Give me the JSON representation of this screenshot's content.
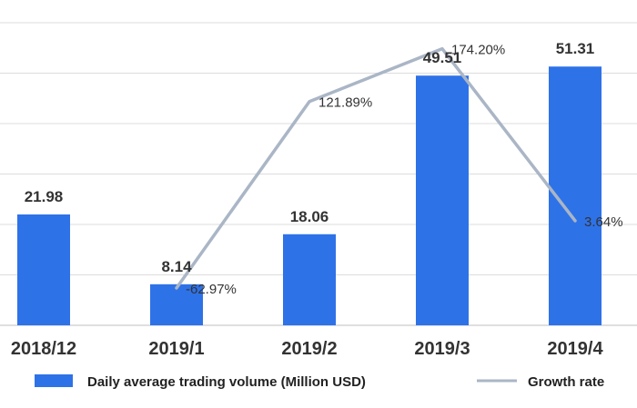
{
  "chart_data": {
    "type": "bar",
    "categories": [
      "2018/12",
      "2019/1",
      "2019/2",
      "2019/3",
      "2019/4"
    ],
    "series": [
      {
        "name": "Daily average trading volume  (Million USD)",
        "type": "bar",
        "values": [
          21.98,
          8.14,
          18.06,
          49.51,
          51.31
        ],
        "labels": [
          "21.98",
          "8.14",
          "18.06",
          "49.51",
          "51.31"
        ],
        "color": "#2e72e8"
      },
      {
        "name": "Growth rate",
        "type": "line",
        "x": [
          "2019/1",
          "2019/2",
          "2019/3",
          "2019/4"
        ],
        "values": [
          -62.97,
          121.89,
          174.2,
          3.64
        ],
        "labels": [
          "-62.97%",
          "121.89%",
          "174.20%",
          "3.64%"
        ],
        "color": "#aab6c6"
      }
    ],
    "ylim": [
      0,
      60
    ],
    "ylim_secondary": [
      -100,
      200
    ],
    "grid": true,
    "legend": "bottom"
  }
}
